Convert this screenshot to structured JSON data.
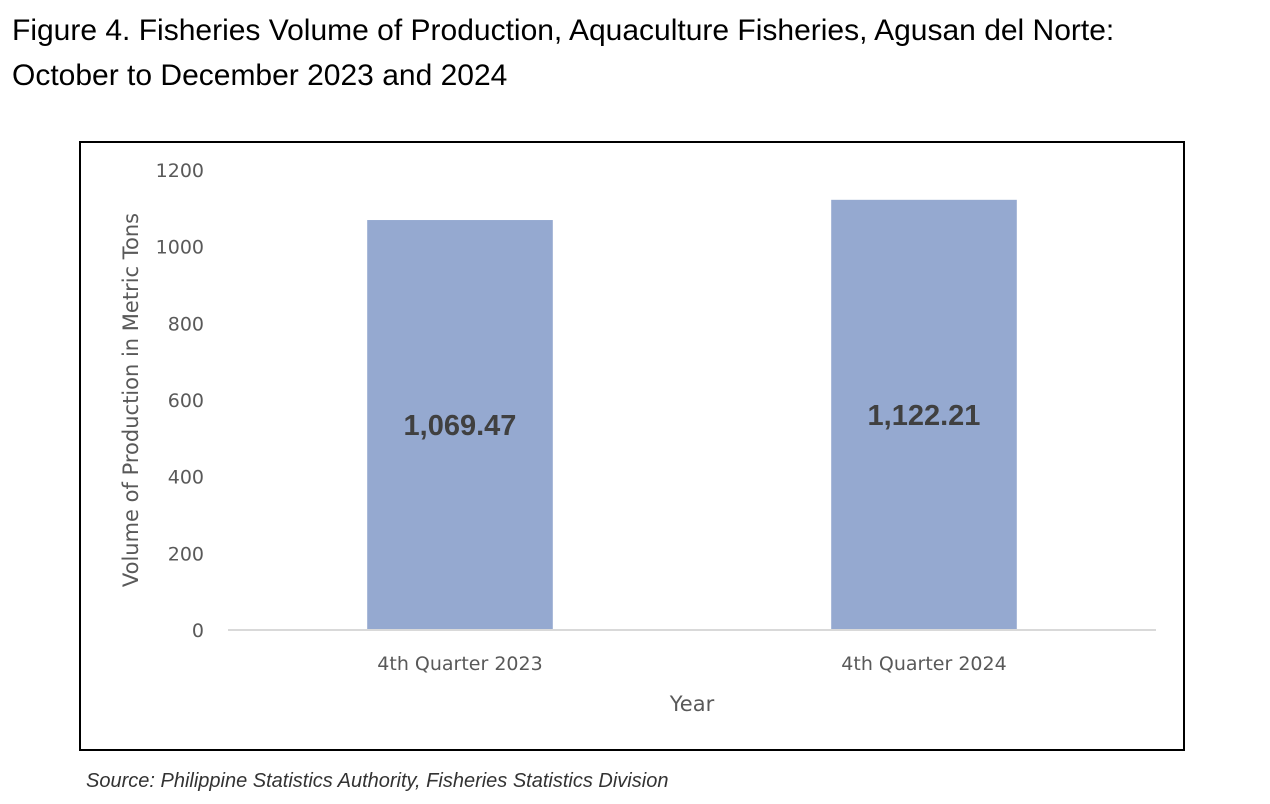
{
  "figure": {
    "title_line1": "Figure 4. Fisheries Volume of Production, Aquaculture Fisheries, Agusan del Norte:",
    "title_line2": "October to December 2023 and 2024"
  },
  "chart_data": {
    "type": "bar",
    "title": "",
    "xlabel": "Year",
    "ylabel": "Volume of Production in Metric Tons",
    "categories": [
      "4th Quarter 2023",
      "4th Quarter 2024"
    ],
    "values": [
      1069.47,
      1122.21
    ],
    "data_labels": [
      "1,069.47",
      "1,122.21"
    ],
    "ylim": [
      0,
      1200
    ],
    "yticks": [
      0,
      200,
      400,
      600,
      800,
      1000,
      1200
    ],
    "grid": false,
    "legend": "none",
    "bar_color": "#95A9D0"
  },
  "source": "Source: Philippine Statistics Authority, Fisheries Statistics Division"
}
